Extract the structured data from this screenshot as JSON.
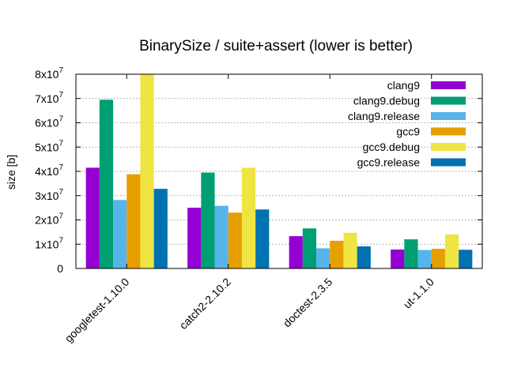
{
  "chart_data": {
    "type": "bar",
    "title": "BinarySize / suite+assert (lower is better)",
    "xlabel": "",
    "ylabel": "size [b]",
    "ylim": [
      0,
      80000000
    ],
    "yticks": [
      {
        "value": 0,
        "label": "0"
      },
      {
        "value": 10000000,
        "label": "1x10",
        "exp": "7"
      },
      {
        "value": 20000000,
        "label": "2x10",
        "exp": "7"
      },
      {
        "value": 30000000,
        "label": "3x10",
        "exp": "7"
      },
      {
        "value": 40000000,
        "label": "4x10",
        "exp": "7"
      },
      {
        "value": 50000000,
        "label": "5x10",
        "exp": "7"
      },
      {
        "value": 60000000,
        "label": "6x10",
        "exp": "7"
      },
      {
        "value": 70000000,
        "label": "7x10",
        "exp": "7"
      },
      {
        "value": 80000000,
        "label": "8x10",
        "exp": "7"
      }
    ],
    "grid": true,
    "legend_position": "top-right",
    "categories": [
      "googletest-1.10.0",
      "catch2-2.10.2",
      "doctest-2.3.5",
      "ut-1.1.0"
    ],
    "series": [
      {
        "name": "clang9",
        "color": "#9400d3",
        "values": [
          41500000,
          25000000,
          13300000,
          7800000
        ]
      },
      {
        "name": "clang9.debug",
        "color": "#009e73",
        "values": [
          69500000,
          39500000,
          16500000,
          12000000
        ]
      },
      {
        "name": "clang9.release",
        "color": "#56b4e9",
        "values": [
          28200000,
          25800000,
          8300000,
          7600000
        ]
      },
      {
        "name": "gcc9",
        "color": "#e69f00",
        "values": [
          38800000,
          23000000,
          11400000,
          8100000
        ]
      },
      {
        "name": "gcc9.debug",
        "color": "#f0e442",
        "values": [
          80000000,
          41500000,
          14700000,
          14000000
        ]
      },
      {
        "name": "gcc9.release",
        "color": "#0072b2",
        "values": [
          32800000,
          24300000,
          9100000,
          7700000
        ]
      }
    ]
  }
}
